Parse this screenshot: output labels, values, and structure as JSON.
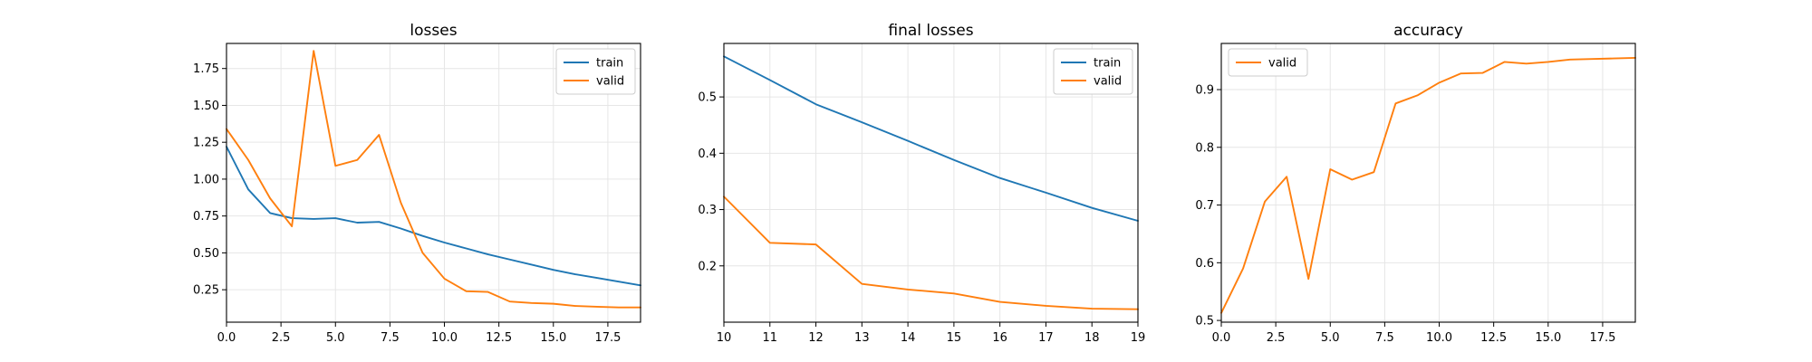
{
  "colors": {
    "train": "#1f77b4",
    "valid": "#ff7f0e"
  },
  "chart_data": [
    {
      "type": "line",
      "title": "losses",
      "xlabel": "",
      "ylabel": "",
      "xlim": [
        0,
        19
      ],
      "ylim": [
        0.03,
        1.92
      ],
      "xticks": [
        0.0,
        2.5,
        5.0,
        7.5,
        10.0,
        12.5,
        15.0,
        17.5
      ],
      "xtick_labels": [
        "0.0",
        "2.5",
        "5.0",
        "7.5",
        "10.0",
        "12.5",
        "15.0",
        "17.5"
      ],
      "yticks": [
        0.25,
        0.5,
        0.75,
        1.0,
        1.25,
        1.5,
        1.75
      ],
      "ytick_labels": [
        "0.25",
        "0.50",
        "0.75",
        "1.00",
        "1.25",
        "1.50",
        "1.75"
      ],
      "grid": true,
      "legend": "top-right",
      "series": [
        {
          "name": "train",
          "color": "#1f77b4",
          "x": [
            0,
            1,
            2,
            3,
            4,
            5,
            6,
            7,
            8,
            9,
            10,
            11,
            12,
            13,
            14,
            15,
            16,
            17,
            18,
            19
          ],
          "y": [
            1.22,
            0.93,
            0.77,
            0.735,
            0.73,
            0.735,
            0.705,
            0.71,
            0.665,
            0.615,
            0.57,
            0.53,
            0.49,
            0.455,
            0.42,
            0.385,
            0.355,
            0.33,
            0.305,
            0.28
          ]
        },
        {
          "name": "valid",
          "color": "#ff7f0e",
          "x": [
            0,
            1,
            2,
            3,
            4,
            5,
            6,
            7,
            8,
            9,
            10,
            11,
            12,
            13,
            14,
            15,
            16,
            17,
            18,
            19
          ],
          "y": [
            1.34,
            1.13,
            0.87,
            0.68,
            1.87,
            1.09,
            1.13,
            1.3,
            0.84,
            0.5,
            0.325,
            0.24,
            0.235,
            0.17,
            0.16,
            0.155,
            0.14,
            0.135,
            0.13,
            0.13
          ]
        }
      ]
    },
    {
      "type": "line",
      "title": "final losses",
      "xlabel": "",
      "ylabel": "",
      "xlim": [
        10,
        19
      ],
      "ylim": [
        0.1,
        0.595
      ],
      "xticks": [
        10,
        11,
        12,
        13,
        14,
        15,
        16,
        17,
        18,
        19
      ],
      "xtick_labels": [
        "10",
        "11",
        "12",
        "13",
        "14",
        "15",
        "16",
        "17",
        "18",
        "19"
      ],
      "yticks": [
        0.2,
        0.3,
        0.4,
        0.5
      ],
      "ytick_labels": [
        "0.2",
        "0.3",
        "0.4",
        "0.5"
      ],
      "grid": true,
      "legend": "top-right",
      "series": [
        {
          "name": "train",
          "color": "#1f77b4",
          "x": [
            10,
            11,
            12,
            13,
            14,
            15,
            16,
            17,
            18,
            19
          ],
          "y": [
            0.572,
            0.53,
            0.487,
            0.455,
            0.422,
            0.388,
            0.356,
            0.33,
            0.303,
            0.28
          ]
        },
        {
          "name": "valid",
          "color": "#ff7f0e",
          "x": [
            10,
            11,
            12,
            13,
            14,
            15,
            16,
            17,
            18,
            19
          ],
          "y": [
            0.323,
            0.241,
            0.238,
            0.168,
            0.158,
            0.151,
            0.136,
            0.129,
            0.124,
            0.123
          ]
        }
      ]
    },
    {
      "type": "line",
      "title": "accuracy",
      "xlabel": "",
      "ylabel": "",
      "xlim": [
        0,
        19
      ],
      "ylim": [
        0.497,
        0.98
      ],
      "xticks": [
        0.0,
        2.5,
        5.0,
        7.5,
        10.0,
        12.5,
        15.0,
        17.5
      ],
      "xtick_labels": [
        "0.0",
        "2.5",
        "5.0",
        "7.5",
        "10.0",
        "12.5",
        "15.0",
        "17.5"
      ],
      "yticks": [
        0.5,
        0.6,
        0.7,
        0.8,
        0.9
      ],
      "ytick_labels": [
        "0.5",
        "0.6",
        "0.7",
        "0.8",
        "0.9"
      ],
      "grid": true,
      "legend": "top-left",
      "series": [
        {
          "name": "valid",
          "color": "#ff7f0e",
          "x": [
            0,
            1,
            2,
            3,
            4,
            5,
            6,
            7,
            8,
            9,
            10,
            11,
            12,
            13,
            14,
            15,
            16,
            17,
            18,
            19
          ],
          "y": [
            0.513,
            0.59,
            0.706,
            0.749,
            0.572,
            0.762,
            0.744,
            0.757,
            0.876,
            0.89,
            0.912,
            0.928,
            0.929,
            0.948,
            0.945,
            0.948,
            0.952,
            0.953,
            0.954,
            0.955
          ]
        }
      ]
    }
  ]
}
